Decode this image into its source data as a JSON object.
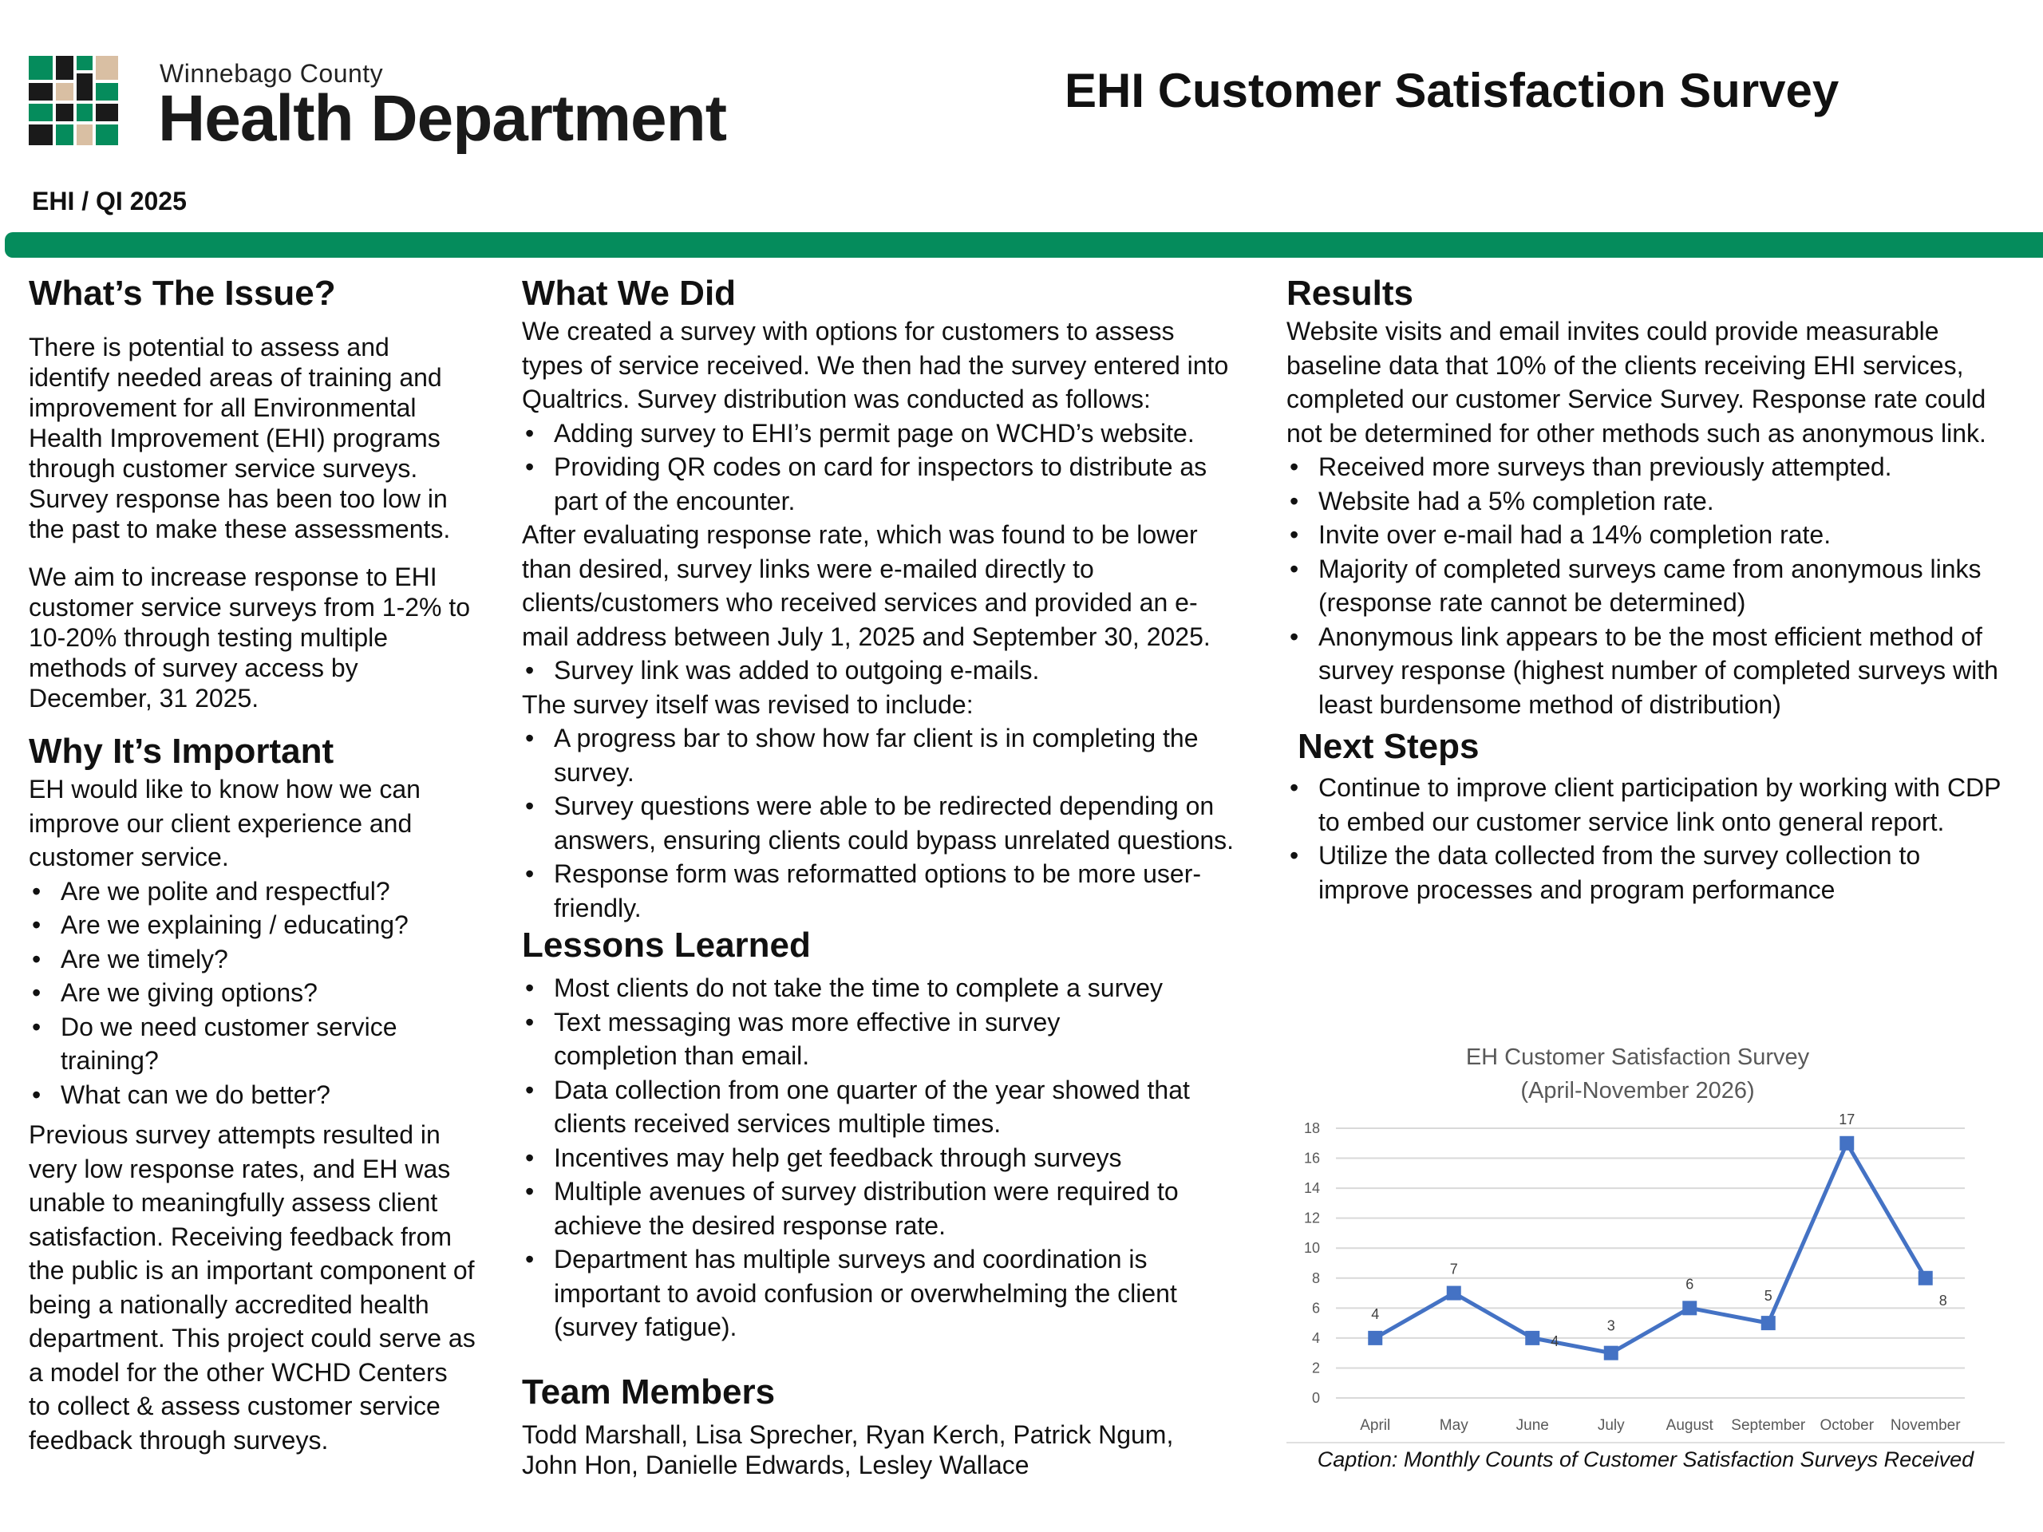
{
  "header": {
    "org_sub": "Winnebago County",
    "org_main": "Health Department",
    "title": "EHI Customer Satisfaction Survey",
    "tag": "EHI / QI 2025",
    "accent_color": "#058c5c"
  },
  "issue": {
    "heading": "What’s The Issue?",
    "p1": "There is potential to assess and identify needed areas of training and improvement for all Environmental Health Improvement (EHI) programs through customer service surveys. Survey response has been too low in the past to make these assessments.",
    "p2": "We aim to increase response to EHI customer service surveys from 1-2% to 10-20% through testing multiple methods of survey access by December, 31 2025."
  },
  "important": {
    "heading": "Why It’s Important",
    "intro": "EH would like to know how we can improve our client experience and customer service.",
    "bullets": [
      "Are we polite and respectful?",
      "Are we explaining / educating?",
      "Are we timely?",
      "Are we giving options?",
      "Do we need customer service training?",
      "What can we do better?"
    ],
    "closing": "Previous survey attempts resulted in very low response rates, and EH was unable to meaningfully assess client satisfaction. Receiving feedback from the public is an important component of being a nationally accredited health department. This project could serve as a model for the other WCHD Centers to collect & assess customer service feedback through surveys."
  },
  "did": {
    "heading": "What We Did",
    "intro": "We created a survey with options for customers to assess types  of service received. We then had the survey entered into Qualtrics. Survey distribution was conducted as follows:",
    "bullets1": [
      " Adding survey to EHI’s permit page on WCHD’s website.",
      "Providing QR codes on card for inspectors to distribute as part of the encounter."
    ],
    "middle": "After evaluating response rate, which was found to be lower than desired, survey links were e-mailed directly to clients/customers who received services and provided an e-mail address between July 1, 2025 and September 30, 2025.",
    "bullets2": [
      "Survey link was added to outgoing e-mails."
    ],
    "revised": "The survey itself was revised to include:",
    "bullets3": [
      "A progress bar to show how far client is in completing the survey.",
      "Survey questions were able to be redirected depending on answers, ensuring clients could bypass unrelated questions.",
      "Response form was reformatted options to be more user-friendly."
    ]
  },
  "lessons": {
    "heading": "Lessons Learned",
    "bullets": [
      "Most clients do not take the time to complete a survey",
      "Text messaging was more effective in survey completion than email.",
      "Data collection from one quarter of the year showed that clients received services multiple times.",
      "Incentives may help get feedback through surveys",
      "Multiple avenues of survey distribution were required to achieve the desired response rate.",
      "Department has multiple surveys and coordination is important to avoid confusion or overwhelming the client (survey fatigue)."
    ]
  },
  "team": {
    "heading": "Team Members",
    "names": "Todd Marshall, Lisa Sprecher, Ryan Kerch, Patrick Ngum, John Hon, Danielle Edwards, Lesley Wallace"
  },
  "results": {
    "heading": "Results",
    "intro": "Website visits and email invites could provide measurable baseline data that 10% of the clients receiving EHI services, completed our customer Service Survey. Response rate could not be determined for other methods such as anonymous link.",
    "bullets": [
      "Received more surveys than previously attempted.",
      "Website had a 5% completion rate.",
      "Invite over e-mail had a 14% completion rate.",
      "Majority of completed surveys came from anonymous links (response rate cannot be determined)",
      "Anonymous link appears to be the most efficient method of survey response (highest number of completed surveys with least burdensome method of distribution)"
    ]
  },
  "next": {
    "heading": "Next Steps",
    "bullets": [
      "Continue to improve client participation by working with CDP to embed our customer service link onto  general report.",
      "Utilize the data collected from the survey collection to improve processes and program performance"
    ]
  },
  "chart_data": {
    "type": "line",
    "title": "EH Customer Satisfaction Survey",
    "subtitle": "(April-November 2026)",
    "categories": [
      "April",
      "May",
      "June",
      "July",
      "August",
      "September",
      "October",
      "November"
    ],
    "series": [
      {
        "values": [
          4,
          7,
          4,
          3,
          6,
          5,
          17,
          8
        ],
        "color": "#4472c4"
      }
    ],
    "ylim": [
      0,
      18
    ],
    "yticks": [
      0,
      2,
      4,
      6,
      8,
      10,
      12,
      14,
      16,
      18
    ],
    "grid": true,
    "data_labels": true
  },
  "caption": "Caption: Monthly Counts of  Customer Satisfaction Surveys Received"
}
